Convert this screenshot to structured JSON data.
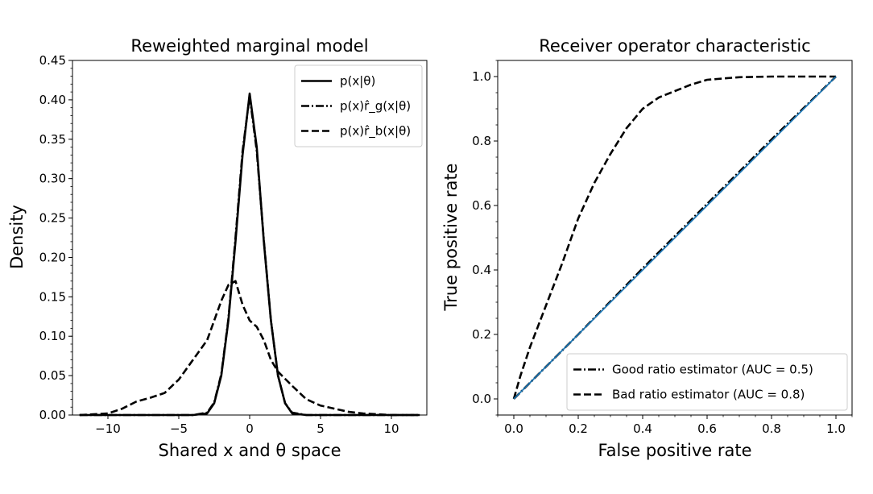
{
  "chart_data": [
    {
      "type": "line",
      "title": "Reweighted marginal model",
      "xlabel": "Shared x and θ space",
      "ylabel": "Density",
      "xlim": [
        -12.5,
        12.5
      ],
      "ylim": [
        0,
        0.45
      ],
      "xticks": [
        -10,
        -5,
        0,
        5,
        10
      ],
      "xtick_labels": [
        "−10",
        "−5",
        "0",
        "5",
        "10"
      ],
      "yticks": [
        0,
        0.05,
        0.1,
        0.15,
        0.2,
        0.25,
        0.3,
        0.35,
        0.4,
        0.45
      ],
      "ytick_labels": [
        "0.00",
        "0.05",
        "0.10",
        "0.15",
        "0.20",
        "0.25",
        "0.30",
        "0.35",
        "0.40",
        "0.45"
      ],
      "grid": false,
      "legend_position": "top-right",
      "series": [
        {
          "name": "p(x|θ)",
          "style": "solid",
          "x": [
            -12,
            -4,
            -3,
            -2.5,
            -2,
            -1.5,
            -1,
            -0.5,
            0,
            0.5,
            1,
            1.5,
            2,
            2.5,
            3,
            4,
            12
          ],
          "y": [
            0,
            0,
            0.002,
            0.015,
            0.05,
            0.12,
            0.22,
            0.33,
            0.408,
            0.34,
            0.22,
            0.12,
            0.05,
            0.015,
            0.002,
            0,
            0
          ]
        },
        {
          "name": "p(x)r̂_g(x|θ)",
          "style": "dashdot",
          "x": [
            -12,
            -4,
            -3,
            -2.5,
            -2,
            -1.5,
            -1,
            -0.5,
            0,
            0.5,
            1,
            1.5,
            2,
            2.5,
            3,
            4,
            12
          ],
          "y": [
            0,
            0,
            0.003,
            0.016,
            0.052,
            0.122,
            0.225,
            0.335,
            0.405,
            0.335,
            0.222,
            0.12,
            0.05,
            0.015,
            0.003,
            0,
            0
          ]
        },
        {
          "name": "p(x)r̂_b(x|θ)",
          "style": "dashed",
          "x": [
            -12,
            -10,
            -9,
            -8,
            -7,
            -6,
            -5,
            -4,
            -3,
            -2,
            -1.5,
            -1,
            -0.5,
            0,
            0.5,
            1,
            1.5,
            2,
            3,
            4,
            5,
            6,
            7,
            8,
            9,
            10,
            12
          ],
          "y": [
            0,
            0.002,
            0.008,
            0.017,
            0.022,
            0.028,
            0.045,
            0.07,
            0.095,
            0.145,
            0.165,
            0.17,
            0.14,
            0.12,
            0.112,
            0.095,
            0.07,
            0.055,
            0.037,
            0.02,
            0.012,
            0.008,
            0.004,
            0.002,
            0.001,
            0,
            0
          ]
        }
      ]
    },
    {
      "type": "line",
      "title": "Receiver operator characteristic",
      "xlabel": "False positive rate",
      "ylabel": "True positive rate",
      "xlim": [
        -0.05,
        1.05
      ],
      "ylim": [
        -0.05,
        1.05
      ],
      "xticks": [
        0,
        0.2,
        0.4,
        0.6,
        0.8,
        1.0
      ],
      "xtick_labels": [
        "0.0",
        "0.2",
        "0.4",
        "0.6",
        "0.8",
        "1.0"
      ],
      "yticks": [
        0,
        0.2,
        0.4,
        0.6,
        0.8,
        1.0
      ],
      "ytick_labels": [
        "0.0",
        "0.2",
        "0.4",
        "0.6",
        "0.8",
        "1.0"
      ],
      "grid": false,
      "legend_position": "lower-right",
      "series": [
        {
          "name": "Good ratio estimator (AUC = 0.5)",
          "style": "dashdot",
          "x": [
            0,
            0.2,
            0.4,
            0.6,
            0.8,
            1.0
          ],
          "y": [
            0,
            0.2,
            0.405,
            0.605,
            0.805,
            1.0
          ]
        },
        {
          "name": "Bad ratio estimator (AUC = 0.8)",
          "style": "dashed",
          "x": [
            0,
            0.02,
            0.05,
            0.1,
            0.15,
            0.2,
            0.25,
            0.3,
            0.35,
            0.4,
            0.45,
            0.5,
            0.55,
            0.6,
            0.7,
            0.8,
            0.9,
            1.0
          ],
          "y": [
            0,
            0.07,
            0.16,
            0.29,
            0.42,
            0.56,
            0.67,
            0.76,
            0.84,
            0.9,
            0.935,
            0.955,
            0.975,
            0.99,
            0.998,
            1.0,
            1.0,
            1.0
          ]
        },
        {
          "name": "",
          "style": "solid-blue",
          "color": "#1f77b4",
          "x": [
            0,
            1
          ],
          "y": [
            0,
            1
          ]
        }
      ]
    }
  ]
}
